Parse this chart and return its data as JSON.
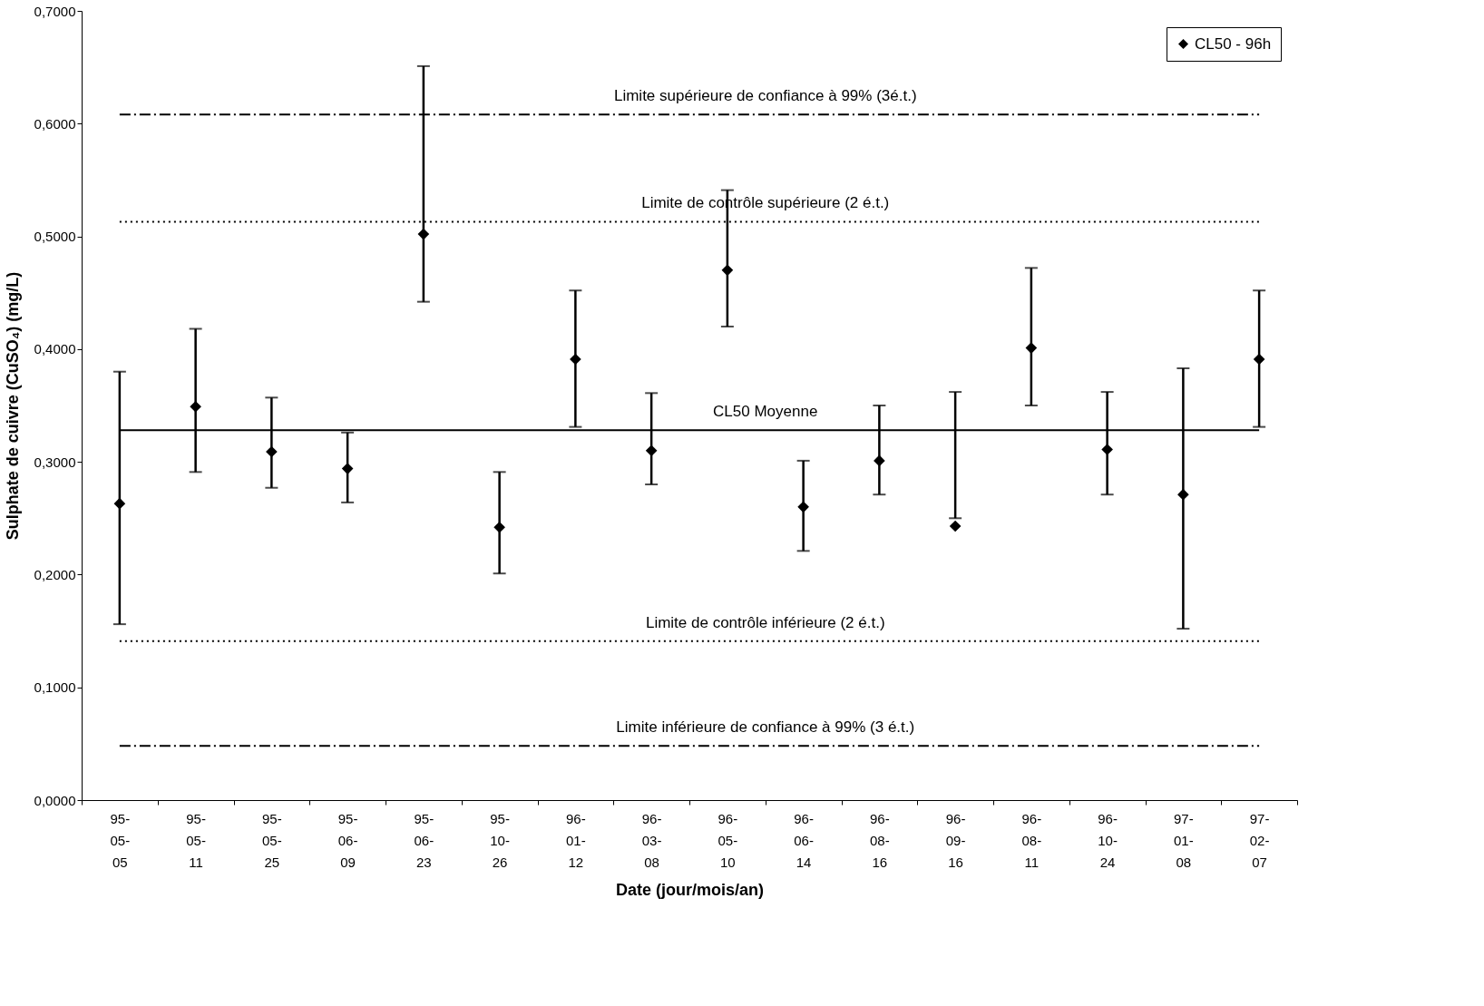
{
  "chart_data": {
    "type": "scatter",
    "xlabel": "Date (jour/mois/an)",
    "ylabel": "Sulphate de cuivre (CuSO₄) (mg/L)",
    "categories": [
      "95-05-05",
      "95-05-11",
      "95-05-25",
      "95-06-09",
      "95-06-23",
      "95-10-26",
      "96-01-12",
      "96-03-08",
      "96-05-10",
      "96-06-14",
      "96-08-16",
      "96-09-16",
      "96-08-11",
      "96-10-24",
      "97-01-08",
      "97-02-07"
    ],
    "series": [
      {
        "name": "CL50 - 96h",
        "color": "#000000",
        "values": [
          0.263,
          0.349,
          0.309,
          0.294,
          0.502,
          0.242,
          0.391,
          0.31,
          0.47,
          0.26,
          0.301,
          0.243,
          0.401,
          0.311,
          0.271,
          0.391
        ],
        "errors": [
          [
            0.156,
            0.38
          ],
          [
            0.291,
            0.418
          ],
          [
            0.277,
            0.357
          ],
          [
            0.264,
            0.326
          ],
          [
            0.442,
            0.651
          ],
          [
            0.201,
            0.291
          ],
          [
            0.331,
            0.452
          ],
          [
            0.28,
            0.361
          ],
          [
            0.42,
            0.541
          ],
          [
            0.221,
            0.301
          ],
          [
            0.271,
            0.35
          ],
          [
            0.25,
            0.362
          ],
          [
            0.35,
            0.472
          ],
          [
            0.271,
            0.362
          ],
          [
            0.152,
            0.383
          ],
          [
            0.331,
            0.452
          ]
        ]
      }
    ],
    "ylim": [
      0,
      0.7
    ],
    "yticks": [
      {
        "value": 0,
        "label": "0,0000"
      },
      {
        "value": 0.1,
        "label": "0,1000"
      },
      {
        "value": 0.2,
        "label": "0,2000"
      },
      {
        "value": 0.3,
        "label": "0,3000"
      },
      {
        "value": 0.4,
        "label": "0,4000"
      },
      {
        "value": 0.5,
        "label": "0,5000"
      },
      {
        "value": 0.6,
        "label": "0,6000"
      },
      {
        "value": 0.7,
        "label": "0,7000"
      }
    ],
    "ref_lines": [
      {
        "axis": "y",
        "value": 0.608,
        "label": "Limite supérieure de confiance à 99% (3é.t.)",
        "line_style": "dashdot",
        "color": "#000000"
      },
      {
        "axis": "y",
        "value": 0.513,
        "label": "Limite de contrôle supérieure (2 é.t.)",
        "line_style": "dotted",
        "color": "#000000"
      },
      {
        "axis": "y",
        "value": 0.328,
        "label": "CL50 Moyenne",
        "line_style": "solid",
        "color": "#000000"
      },
      {
        "axis": "y",
        "value": 0.141,
        "label": "Limite de contrôle inférieure (2 é.t.)",
        "line_style": "dotted",
        "color": "#000000"
      },
      {
        "axis": "y",
        "value": 0.048,
        "label": "Limite inférieure de confiance à 99% (3 é.t.)",
        "line_style": "dashdot",
        "color": "#000000"
      }
    ],
    "marker": "diamond",
    "grid": false,
    "legend": "top right"
  }
}
